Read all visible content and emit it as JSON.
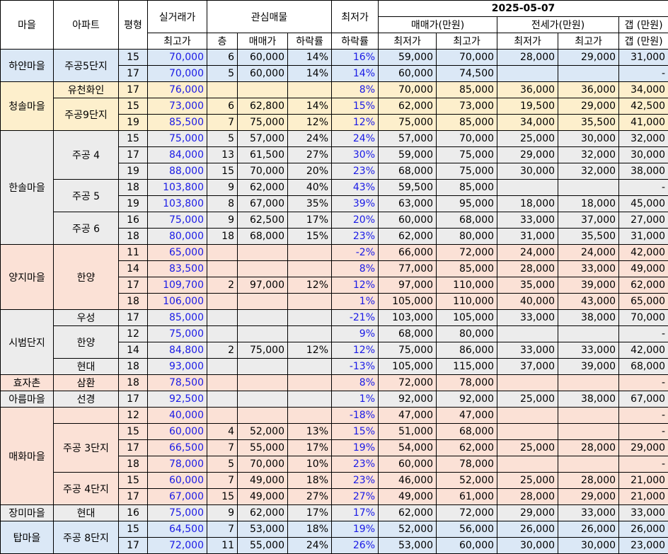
{
  "header": {
    "village": "마을",
    "apartment": "아파트",
    "pyeong": "평형",
    "deal_price": "실거래가",
    "deal_high": "최고가",
    "watch": "관심매물",
    "floor": "층",
    "sale_price": "매매가",
    "drop_rate": "하락률",
    "lowest": "최저가",
    "lowest_drop": "하락률",
    "date": "2025-05-07",
    "sale_range": "매매가(만원)",
    "sale_low": "최저가",
    "sale_high": "최고가",
    "jeonse_range": "전세가(만원)",
    "jeonse_low": "최저가",
    "jeonse_high": "최고가",
    "gap": "갭 (만원)",
    "gap2": "갭 (만원)"
  },
  "groups": [
    {
      "village": "하얀마을",
      "color": "blue",
      "apts": [
        {
          "name": "주공5단지",
          "rows": [
            {
              "pyeong": "15",
              "high": "70,000",
              "floor": "6",
              "price": "60,000",
              "drop": "14%",
              "lowdrop": "16%",
              "slow": "59,000",
              "shigh": "70,000",
              "jlow": "28,000",
              "jhigh": "29,000",
              "gap": "31,000"
            },
            {
              "pyeong": "17",
              "high": "70,000",
              "floor": "5",
              "price": "60,000",
              "drop": "14%",
              "lowdrop": "14%",
              "slow": "60,000",
              "shigh": "74,500",
              "jlow": "",
              "jhigh": "",
              "gap": "-"
            }
          ]
        }
      ]
    },
    {
      "village": "청솔마을",
      "color": "yellow",
      "apts": [
        {
          "name": "유천화인",
          "rows": [
            {
              "pyeong": "17",
              "high": "76,000",
              "floor": "",
              "price": "",
              "drop": "",
              "lowdrop": "8%",
              "slow": "70,000",
              "shigh": "85,000",
              "jlow": "36,000",
              "jhigh": "36,000",
              "gap": "34,000"
            }
          ]
        },
        {
          "name": "주공9단지",
          "rows": [
            {
              "pyeong": "15",
              "high": "73,000",
              "floor": "6",
              "price": "62,800",
              "drop": "14%",
              "lowdrop": "15%",
              "slow": "62,000",
              "shigh": "73,000",
              "jlow": "19,500",
              "jhigh": "29,000",
              "gap": "42,500"
            },
            {
              "pyeong": "19",
              "high": "85,500",
              "floor": "7",
              "price": "75,000",
              "drop": "12%",
              "lowdrop": "12%",
              "slow": "75,000",
              "shigh": "85,000",
              "jlow": "34,000",
              "jhigh": "35,500",
              "gap": "41,000"
            }
          ]
        }
      ]
    },
    {
      "village": "한솔마을",
      "color": "gray",
      "apts": [
        {
          "name": "주공 4",
          "rows": [
            {
              "pyeong": "15",
              "high": "75,000",
              "floor": "5",
              "price": "57,000",
              "drop": "24%",
              "lowdrop": "24%",
              "slow": "57,000",
              "shigh": "70,000",
              "jlow": "25,000",
              "jhigh": "30,000",
              "gap": "32,000"
            },
            {
              "pyeong": "17",
              "high": "84,000",
              "floor": "13",
              "price": "61,500",
              "drop": "27%",
              "lowdrop": "30%",
              "slow": "59,000",
              "shigh": "75,000",
              "jlow": "29,000",
              "jhigh": "32,000",
              "gap": "30,000"
            },
            {
              "pyeong": "19",
              "high": "88,000",
              "floor": "15",
              "price": "70,000",
              "drop": "20%",
              "lowdrop": "23%",
              "slow": "68,000",
              "shigh": "75,000",
              "jlow": "30,000",
              "jhigh": "32,000",
              "gap": "38,000"
            }
          ]
        },
        {
          "name": "주공 5",
          "rows": [
            {
              "pyeong": "18",
              "high": "103,800",
              "floor": "9",
              "price": "62,000",
              "drop": "40%",
              "lowdrop": "43%",
              "slow": "59,500",
              "shigh": "85,000",
              "jlow": "",
              "jhigh": "",
              "gap": "-"
            },
            {
              "pyeong": "19",
              "high": "103,800",
              "floor": "8",
              "price": "67,000",
              "drop": "35%",
              "lowdrop": "39%",
              "slow": "63,000",
              "shigh": "95,000",
              "jlow": "18,000",
              "jhigh": "18,000",
              "gap": "45,000"
            }
          ]
        },
        {
          "name": "주공 6",
          "rows": [
            {
              "pyeong": "16",
              "high": "75,000",
              "floor": "9",
              "price": "62,500",
              "drop": "17%",
              "lowdrop": "20%",
              "slow": "60,000",
              "shigh": "68,000",
              "jlow": "33,000",
              "jhigh": "37,000",
              "gap": "27,000"
            },
            {
              "pyeong": "18",
              "high": "80,000",
              "floor": "18",
              "price": "68,000",
              "drop": "15%",
              "lowdrop": "23%",
              "slow": "62,000",
              "shigh": "80,000",
              "jlow": "31,000",
              "jhigh": "35,500",
              "gap": "31,000"
            }
          ]
        }
      ]
    },
    {
      "village": "양지마을",
      "color": "pink",
      "apts": [
        {
          "name": "한양",
          "rows": [
            {
              "pyeong": "11",
              "high": "65,000",
              "floor": "",
              "price": "",
              "drop": "",
              "lowdrop": "-2%",
              "slow": "66,000",
              "shigh": "72,000",
              "jlow": "24,000",
              "jhigh": "24,000",
              "gap": "42,000"
            },
            {
              "pyeong": "14",
              "high": "83,500",
              "floor": "",
              "price": "",
              "drop": "",
              "lowdrop": "8%",
              "slow": "77,000",
              "shigh": "85,000",
              "jlow": "28,000",
              "jhigh": "33,000",
              "gap": "49,000"
            },
            {
              "pyeong": "17",
              "high": "109,700",
              "floor": "2",
              "price": "97,000",
              "drop": "12%",
              "lowdrop": "12%",
              "slow": "97,000",
              "shigh": "110,000",
              "jlow": "35,000",
              "jhigh": "39,000",
              "gap": "62,000"
            },
            {
              "pyeong": "18",
              "high": "106,000",
              "floor": "",
              "price": "",
              "drop": "",
              "lowdrop": "1%",
              "slow": "105,000",
              "shigh": "110,000",
              "jlow": "40,000",
              "jhigh": "43,000",
              "gap": "65,000"
            }
          ]
        }
      ]
    },
    {
      "village": "시범단지",
      "color": "gray",
      "apts": [
        {
          "name": "우성",
          "rows": [
            {
              "pyeong": "17",
              "high": "85,000",
              "floor": "",
              "price": "",
              "drop": "",
              "lowdrop": "-21%",
              "slow": "103,000",
              "shigh": "105,000",
              "jlow": "33,000",
              "jhigh": "38,000",
              "gap": "70,000"
            }
          ]
        },
        {
          "name": "한양",
          "rows": [
            {
              "pyeong": "12",
              "high": "75,000",
              "floor": "",
              "price": "",
              "drop": "",
              "lowdrop": "9%",
              "slow": "68,000",
              "shigh": "80,000",
              "jlow": "",
              "jhigh": "",
              "gap": "-"
            },
            {
              "pyeong": "14",
              "high": "84,800",
              "floor": "2",
              "price": "75,000",
              "drop": "12%",
              "lowdrop": "12%",
              "slow": "75,000",
              "shigh": "86,000",
              "jlow": "33,000",
              "jhigh": "33,000",
              "gap": "42,000"
            }
          ]
        },
        {
          "name": "현대",
          "rows": [
            {
              "pyeong": "18",
              "high": "93,000",
              "floor": "",
              "price": "",
              "drop": "",
              "lowdrop": "-13%",
              "slow": "105,000",
              "shigh": "115,000",
              "jlow": "37,000",
              "jhigh": "39,000",
              "gap": "68,000"
            }
          ]
        }
      ]
    },
    {
      "village": "효자촌",
      "color": "pink",
      "apts": [
        {
          "name": "삼환",
          "rows": [
            {
              "pyeong": "18",
              "high": "78,500",
              "floor": "",
              "price": "",
              "drop": "",
              "lowdrop": "8%",
              "slow": "72,000",
              "shigh": "78,000",
              "jlow": "",
              "jhigh": "",
              "gap": "-"
            }
          ]
        }
      ]
    },
    {
      "village": "아름마을",
      "color": "gray",
      "apts": [
        {
          "name": "선경",
          "rows": [
            {
              "pyeong": "17",
              "high": "92,500",
              "floor": "",
              "price": "",
              "drop": "",
              "lowdrop": "1%",
              "slow": "92,000",
              "shigh": "92,000",
              "jlow": "25,000",
              "jhigh": "38,000",
              "gap": "67,000"
            }
          ]
        }
      ]
    },
    {
      "village": "매화마을",
      "color": "pink",
      "apts": [
        {
          "name": "",
          "rows": [
            {
              "pyeong": "12",
              "high": "40,000",
              "floor": "",
              "price": "",
              "drop": "",
              "lowdrop": "-18%",
              "slow": "47,000",
              "shigh": "47,000",
              "jlow": "",
              "jhigh": "",
              "gap": "-"
            }
          ]
        },
        {
          "name": "주공 3단지",
          "rows": [
            {
              "pyeong": "15",
              "high": "60,000",
              "floor": "4",
              "price": "52,000",
              "drop": "13%",
              "lowdrop": "15%",
              "slow": "51,000",
              "shigh": "68,000",
              "jlow": "",
              "jhigh": "",
              "gap": "-"
            },
            {
              "pyeong": "17",
              "high": "66,500",
              "floor": "7",
              "price": "55,000",
              "drop": "17%",
              "lowdrop": "19%",
              "slow": "54,000",
              "shigh": "62,000",
              "jlow": "25,000",
              "jhigh": "28,000",
              "gap": "29,000"
            },
            {
              "pyeong": "18",
              "high": "78,000",
              "floor": "5",
              "price": "70,000",
              "drop": "10%",
              "lowdrop": "23%",
              "slow": "60,000",
              "shigh": "78,000",
              "jlow": "",
              "jhigh": "",
              "gap": "-"
            }
          ]
        },
        {
          "name": "주공 4단지",
          "rows": [
            {
              "pyeong": "15",
              "high": "60,000",
              "floor": "7",
              "price": "49,000",
              "drop": "18%",
              "lowdrop": "23%",
              "slow": "46,000",
              "shigh": "52,000",
              "jlow": "25,000",
              "jhigh": "28,000",
              "gap": "21,000"
            },
            {
              "pyeong": "17",
              "high": "67,000",
              "floor": "15",
              "price": "49,000",
              "drop": "27%",
              "lowdrop": "27%",
              "slow": "49,000",
              "shigh": "61,000",
              "jlow": "28,000",
              "jhigh": "29,000",
              "gap": "21,000"
            }
          ]
        }
      ]
    },
    {
      "village": "장미마을",
      "color": "gray",
      "apts": [
        {
          "name": "현대",
          "rows": [
            {
              "pyeong": "16",
              "high": "75,000",
              "floor": "9",
              "price": "62,000",
              "drop": "17%",
              "lowdrop": "17%",
              "slow": "62,000",
              "shigh": "72,000",
              "jlow": "29,000",
              "jhigh": "33,000",
              "gap": "33,000"
            }
          ]
        }
      ]
    },
    {
      "village": "탑마을",
      "color": "blue",
      "apts": [
        {
          "name": "주공 8단지",
          "rows": [
            {
              "pyeong": "15",
              "high": "64,500",
              "floor": "7",
              "price": "53,000",
              "drop": "18%",
              "lowdrop": "19%",
              "slow": "52,000",
              "shigh": "56,000",
              "jlow": "26,000",
              "jhigh": "26,000",
              "gap": "26,000"
            },
            {
              "pyeong": "17",
              "high": "72,000",
              "floor": "11",
              "price": "55,000",
              "drop": "24%",
              "lowdrop": "26%",
              "slow": "53,000",
              "shigh": "60,000",
              "jlow": "30,000",
              "jhigh": "30,000",
              "gap": "23,000"
            }
          ]
        }
      ]
    }
  ]
}
